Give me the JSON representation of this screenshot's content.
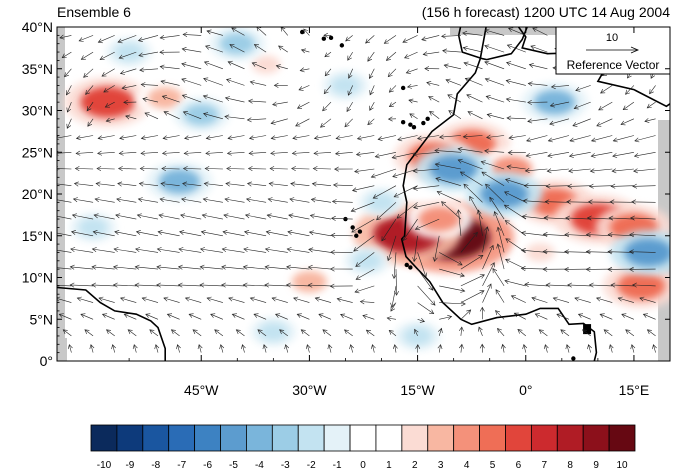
{
  "header": {
    "left_title": "Ensemble 6",
    "right_title": "(156 h forecast) 1200 UTC 14 Aug 2004"
  },
  "reference_vector": {
    "magnitude_label": "10",
    "caption": "Reference Vector"
  },
  "chart_data": {
    "type": "heatmap",
    "subtype": "map_contour_with_wind_vectors",
    "x_axis": {
      "range": [
        -65,
        20
      ],
      "ticks": [
        {
          "value": -45,
          "label": "45°W"
        },
        {
          "value": -30,
          "label": "30°W"
        },
        {
          "value": -15,
          "label": "15°W"
        },
        {
          "value": 0,
          "label": "0°"
        },
        {
          "value": 15,
          "label": "15°E"
        }
      ]
    },
    "y_axis": {
      "range": [
        0,
        40
      ],
      "ticks": [
        {
          "value": 0,
          "label": "0°"
        },
        {
          "value": 5,
          "label": "5°N"
        },
        {
          "value": 10,
          "label": "10°N"
        },
        {
          "value": 15,
          "label": "15°N"
        },
        {
          "value": 20,
          "label": "20°N"
        },
        {
          "value": 25,
          "label": "25°N"
        },
        {
          "value": 30,
          "label": "30°N"
        },
        {
          "value": 35,
          "label": "35°N"
        },
        {
          "value": 40,
          "label": "40°N"
        }
      ]
    },
    "colorbar": {
      "labels": [
        "-10",
        "-9",
        "-8",
        "-7",
        "-6",
        "-5",
        "-4",
        "-3",
        "-2",
        "-1",
        "0",
        "1",
        "2",
        "3",
        "4",
        "5",
        "6",
        "7",
        "8",
        "9",
        "10"
      ],
      "colors": [
        "#0b2a5c",
        "#0d3a7b",
        "#1a56a0",
        "#2a6cb6",
        "#3d82c2",
        "#5c9ccf",
        "#7ab5db",
        "#9ccde6",
        "#c3e3f1",
        "#e4f2f8",
        "#ffffff",
        "#ffffff",
        "#fbdcd4",
        "#f8b7a2",
        "#f4917a",
        "#ef6e56",
        "#e1453b",
        "#cc2a2e",
        "#b01c25",
        "#8c101b",
        "#660812"
      ]
    },
    "anomalies": [
      {
        "lon": -10.5,
        "lat": 14.8,
        "value": 10
      },
      {
        "lon": -16.5,
        "lat": 15.2,
        "value": 8
      },
      {
        "lon": -12.0,
        "lat": 17.0,
        "value": 4
      },
      {
        "lon": -7.5,
        "lat": 26.0,
        "value": 5
      },
      {
        "lon": -13.0,
        "lat": 24.5,
        "value": 5
      },
      {
        "lon": -2.0,
        "lat": 23.0,
        "value": 4
      },
      {
        "lon": 4.0,
        "lat": 19.0,
        "value": 5
      },
      {
        "lon": 10.0,
        "lat": 17.0,
        "value": 6
      },
      {
        "lon": 15.0,
        "lat": 16.0,
        "value": 5
      },
      {
        "lon": -58.0,
        "lat": 31.0,
        "value": 6
      },
      {
        "lon": -50.0,
        "lat": 31.5,
        "value": 3
      },
      {
        "lon": 16.0,
        "lat": 9.0,
        "value": 5
      },
      {
        "lon": -30.0,
        "lat": 9.5,
        "value": 3
      },
      {
        "lon": 2.0,
        "lat": 13.0,
        "value": 2
      },
      {
        "lon": -36.0,
        "lat": 35.5,
        "value": 2
      },
      {
        "lon": -10.0,
        "lat": 23.0,
        "value": -5
      },
      {
        "lon": -3.0,
        "lat": 20.0,
        "value": -5
      },
      {
        "lon": 4.0,
        "lat": 31.0,
        "value": -4
      },
      {
        "lon": 17.0,
        "lat": 13.0,
        "value": -5
      },
      {
        "lon": -48.0,
        "lat": 21.5,
        "value": -4
      },
      {
        "lon": -45.0,
        "lat": 29.5,
        "value": -3
      },
      {
        "lon": -40.0,
        "lat": 38.0,
        "value": -3
      },
      {
        "lon": -55.0,
        "lat": 37.0,
        "value": -2
      },
      {
        "lon": -25.0,
        "lat": 33.0,
        "value": -2
      },
      {
        "lon": -20.0,
        "lat": 19.0,
        "value": -2
      },
      {
        "lon": -22.0,
        "lat": 12.0,
        "value": -2
      },
      {
        "lon": -35.0,
        "lat": 3.5,
        "value": -2
      },
      {
        "lon": -15.0,
        "lat": 3.0,
        "value": -2
      },
      {
        "lon": -60.0,
        "lat": 16.0,
        "value": -2
      }
    ],
    "wind_field": {
      "reference_magnitude": 10,
      "note": "Easterly trade-wind flow with a cyclonic vortex near 11°W, 15°N"
    }
  }
}
